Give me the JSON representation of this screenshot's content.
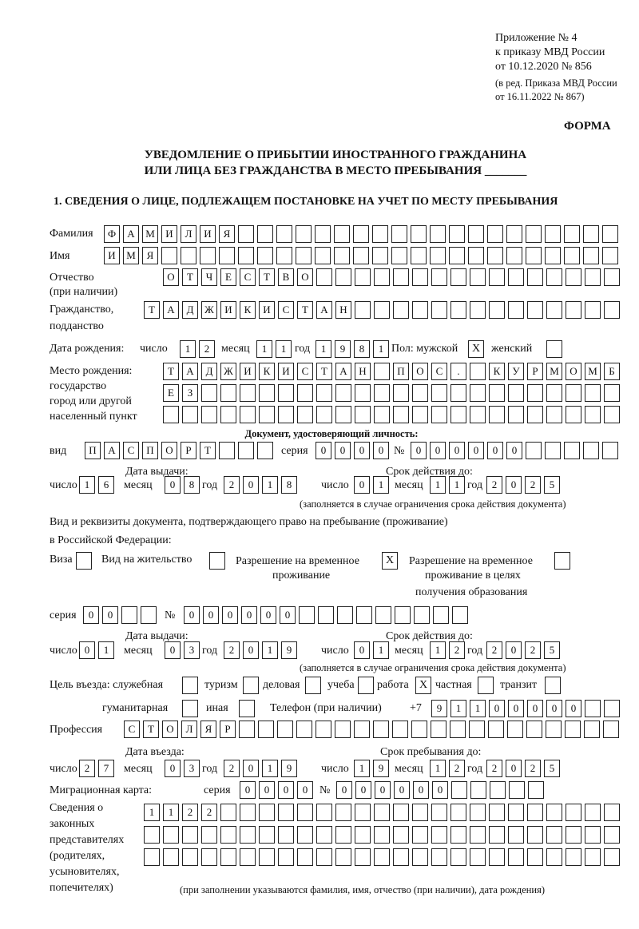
{
  "header": {
    "appendix": "Приложение № 4",
    "order": "к приказу МВД России",
    "order_date": "от 10.12.2020 № 856",
    "edition1": "(в ред. Приказа МВД России",
    "edition2": "от 16.11.2022 № 867)",
    "form": "ФОРМА",
    "title1": "УВЕДОМЛЕНИЕ О ПРИБЫТИИ ИНОСТРАННОГО ГРАЖДАНИНА",
    "title2": "ИЛИ ЛИЦА БЕЗ ГРАЖДАНСТВА В МЕСТО ПРЕБЫВАНИЯ _______",
    "section1": "1. СВЕДЕНИЯ О ЛИЦЕ, ПОДЛЕЖАЩЕМ ПОСТАНОВКЕ НА УЧЕТ ПО МЕСТУ ПРЕБЫВАНИЯ"
  },
  "labels": {
    "surname": "Фамилия",
    "name": "Имя",
    "patronymic": "Отчество",
    "patronymic2": "(при наличии)",
    "citizenship": "Гражданство,",
    "citizenship2": "подданство",
    "birth_date": "Дата рождения:",
    "day": "число",
    "month": "месяц",
    "year": "год",
    "sex": "Пол: мужской",
    "female": "женский",
    "birth_place": "Место рождения:",
    "bp2": "государство",
    "bp3": "город или другой",
    "bp4": "населенный пункт",
    "id_doc": "Документ, удостоверяющий личность:",
    "kind": "вид",
    "series": "серия",
    "number": "№",
    "issue_date": "Дата выдачи:",
    "valid_until": "Срок действия до:",
    "validity_note": "(заполняется в случае ограничения срока действия документа)",
    "right_doc1": "Вид и реквизиты документа, подтверждающего право на пребывание (проживание)",
    "right_doc2": "в Российской Федерации:",
    "visa": "Виза",
    "residence": "Вид на жительство",
    "temp1": "Разрешение на временное",
    "temp2": "проживание",
    "edu1": "Разрешение на временное",
    "edu2": "проживание в целях",
    "edu3": "получения образования",
    "purpose": "Цель въезда: служебная",
    "tourism": "туризм",
    "business": "деловая",
    "study": "учеба",
    "work": "работа",
    "private": "частная",
    "transit": "транзит",
    "humanitarian": "гуманитарная",
    "other": "иная",
    "phone": "Телефон (при наличии)",
    "phone_prefix": "+7",
    "profession": "Профессия",
    "entry_date": "Дата въезда:",
    "stay_until": "Срок пребывания до:",
    "migration_card": "Миграционная карта:",
    "reps1": "Сведения о",
    "reps2": "законных",
    "reps3": "представителях",
    "reps4": "(родителях,",
    "reps5": "усыновителях,",
    "reps6": "попечителях)",
    "reps_note": "(при заполнении указываются фамилия, имя, отчество (при наличии), дата рождения)"
  },
  "values": {
    "surname": "ФАМИЛИЯ",
    "name": "ИМЯ",
    "patronymic": "ОТЧЕСТВО",
    "citizenship": "ТАДЖИКИСТАН",
    "birth_day": "12",
    "birth_month": "11",
    "birth_year": "1981",
    "male": "X",
    "female": "",
    "birth_place1": "ТАДЖИКИСТАН ПОС. КУРМОМБ",
    "birth_place2": "ЕЗ",
    "birth_place3": "",
    "doc_kind": "ПАСПОРТ",
    "doc_series": "0000",
    "doc_number": "000000",
    "doc_issue_day": "16",
    "doc_issue_month": "08",
    "doc_issue_year": "2018",
    "doc_valid_day": "01",
    "doc_valid_month": "11",
    "doc_valid_year": "2025",
    "visa": "",
    "residence": "",
    "temp_residence": "X",
    "edu_residence": "",
    "right_series": "00",
    "right_number": "000000",
    "right_issue_day": "01",
    "right_issue_month": "03",
    "right_issue_year": "2019",
    "right_valid_day": "01",
    "right_valid_month": "12",
    "right_valid_year": "2025",
    "p_service": "",
    "p_tourism": "",
    "p_business": "",
    "p_study": "",
    "p_work": "X",
    "p_private": "",
    "p_transit": "",
    "p_humanitarian": "",
    "p_other": "",
    "phone": "91100000",
    "profession": "СТОЛЯР",
    "entry_day": "27",
    "entry_month": "03",
    "entry_year": "2019",
    "stay_day": "19",
    "stay_month": "12",
    "stay_year": "2025",
    "mc_series": "0000",
    "mc_number": "000000",
    "reps1": "1122",
    "reps2": "",
    "reps3": ""
  }
}
